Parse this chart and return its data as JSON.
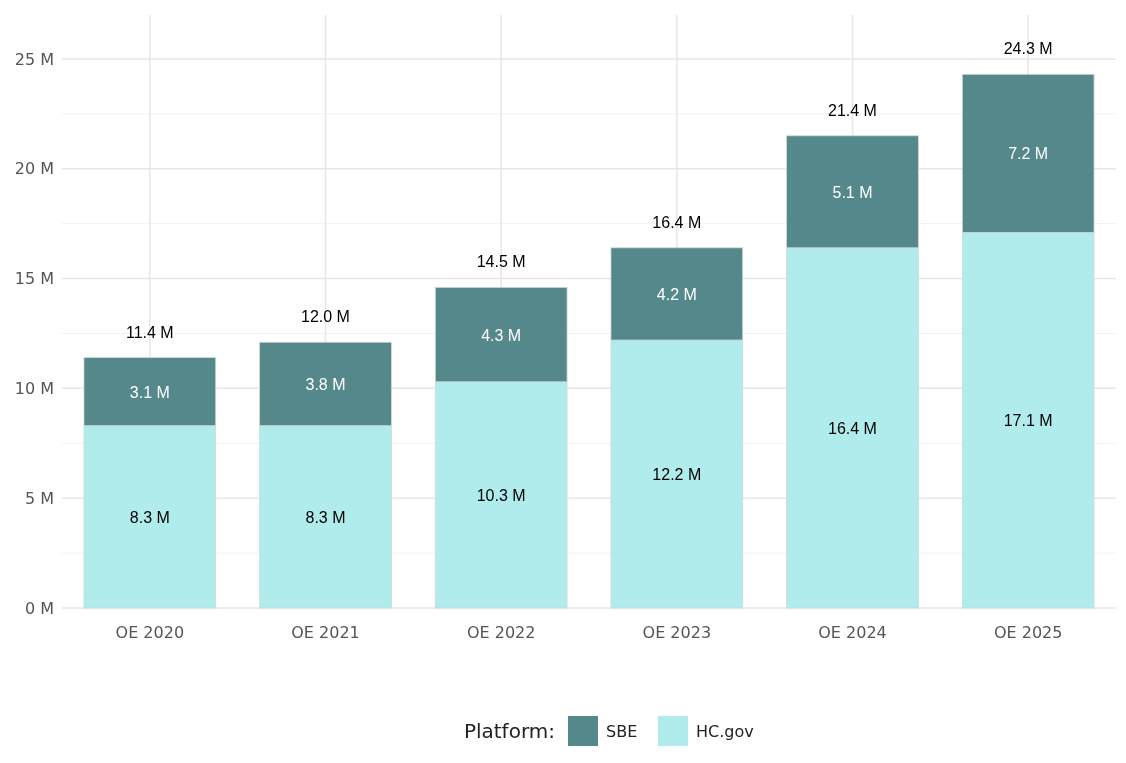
{
  "chart_data": {
    "type": "bar",
    "stacked": true,
    "categories": [
      "OE 2020",
      "OE 2021",
      "OE 2022",
      "OE 2023",
      "OE 2024",
      "OE 2025"
    ],
    "series": [
      {
        "name": "HC.gov",
        "color": "#b0ecec",
        "values": [
          8.3,
          8.3,
          10.3,
          12.2,
          16.4,
          17.1
        ],
        "value_labels": [
          "8.3 M",
          "8.3 M",
          "10.3 M",
          "12.2 M",
          "16.4 M",
          "17.1 M"
        ]
      },
      {
        "name": "SBE",
        "color": "#55888a",
        "values": [
          3.1,
          3.8,
          4.3,
          4.2,
          5.1,
          7.2
        ],
        "value_labels": [
          "3.1 M",
          "3.8 M",
          "4.3 M",
          "4.2 M",
          "5.1 M",
          "7.2 M"
        ]
      }
    ],
    "totals": [
      "11.4 M",
      "12.0 M",
      "14.5 M",
      "16.4 M",
      "21.4 M",
      "24.3 M"
    ],
    "ylim": [
      0,
      27
    ],
    "yticks": [
      {
        "value": 0,
        "label": "0 M"
      },
      {
        "value": 2.5,
        "label": null
      },
      {
        "value": 5,
        "label": "5 M"
      },
      {
        "value": 7.5,
        "label": null
      },
      {
        "value": 10,
        "label": "10 M"
      },
      {
        "value": 12.5,
        "label": null
      },
      {
        "value": 15,
        "label": "15 M"
      },
      {
        "value": 17.5,
        "label": null
      },
      {
        "value": 20,
        "label": "20 M"
      },
      {
        "value": 22.5,
        "label": null
      },
      {
        "value": 25,
        "label": "25 M"
      }
    ],
    "grid": true,
    "legend": "bottom",
    "legend_title": "Platform:"
  }
}
